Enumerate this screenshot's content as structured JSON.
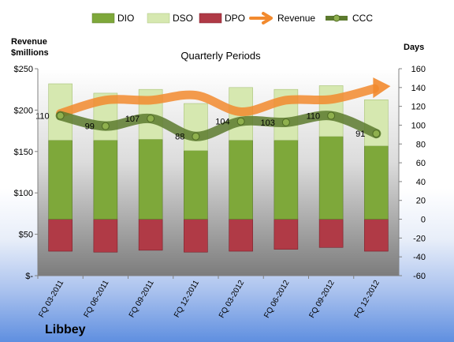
{
  "chart_data": {
    "type": "bar",
    "title": "Quarterly Periods",
    "company": "Libbey",
    "y_left_label_1": "Revenue",
    "y_left_label_2": "$millions",
    "y_right_label": "Days",
    "categories": [
      "FQ 03-2011",
      "FQ 06-2011",
      "FQ 09-2011",
      "FQ 12-2011",
      "FQ 03-2012",
      "FQ 06-2012",
      "FQ 09-2012",
      "FQ 12-2012"
    ],
    "left_axis": {
      "min": 0,
      "max": 250,
      "step": 50,
      "tick_labels": [
        "$-",
        "$50",
        "$100",
        "$150",
        "$200",
        "$250"
      ]
    },
    "right_axis": {
      "min": -60,
      "max": 160,
      "step": 20,
      "tick_labels": [
        "-60",
        "-40",
        "-20",
        "0",
        "20",
        "40",
        "60",
        "80",
        "100",
        "120",
        "140",
        "160"
      ]
    },
    "series": [
      {
        "name": "DIO",
        "axis": "right",
        "kind": "stacked-bar-positive",
        "color": "#7ea83a",
        "values": [
          84,
          84,
          85,
          73,
          84,
          84,
          88,
          78
        ]
      },
      {
        "name": "DSO",
        "axis": "right",
        "kind": "stacked-bar-positive",
        "color": "#d6e8b0",
        "values": [
          60,
          50,
          53,
          50,
          56,
          54,
          54,
          49
        ]
      },
      {
        "name": "DPO",
        "axis": "right",
        "kind": "bar-negative",
        "color": "#b03a46",
        "values": [
          34,
          35,
          33,
          35,
          34,
          32,
          30,
          34
        ]
      },
      {
        "name": "Revenue",
        "axis": "left",
        "kind": "arrow-line",
        "color": "#f28a2e",
        "values": [
          196,
          212,
          212,
          218,
          198,
          212,
          213,
          226
        ]
      },
      {
        "name": "CCC",
        "axis": "right",
        "kind": "line-markers",
        "color": "#5c7a2e",
        "values": [
          110,
          99,
          107,
          88,
          104,
          103,
          110,
          91
        ],
        "labels": [
          "110",
          "99",
          "107",
          "88",
          "104",
          "103",
          "110",
          "91"
        ]
      }
    ],
    "legend_position": "top",
    "grid": false
  }
}
